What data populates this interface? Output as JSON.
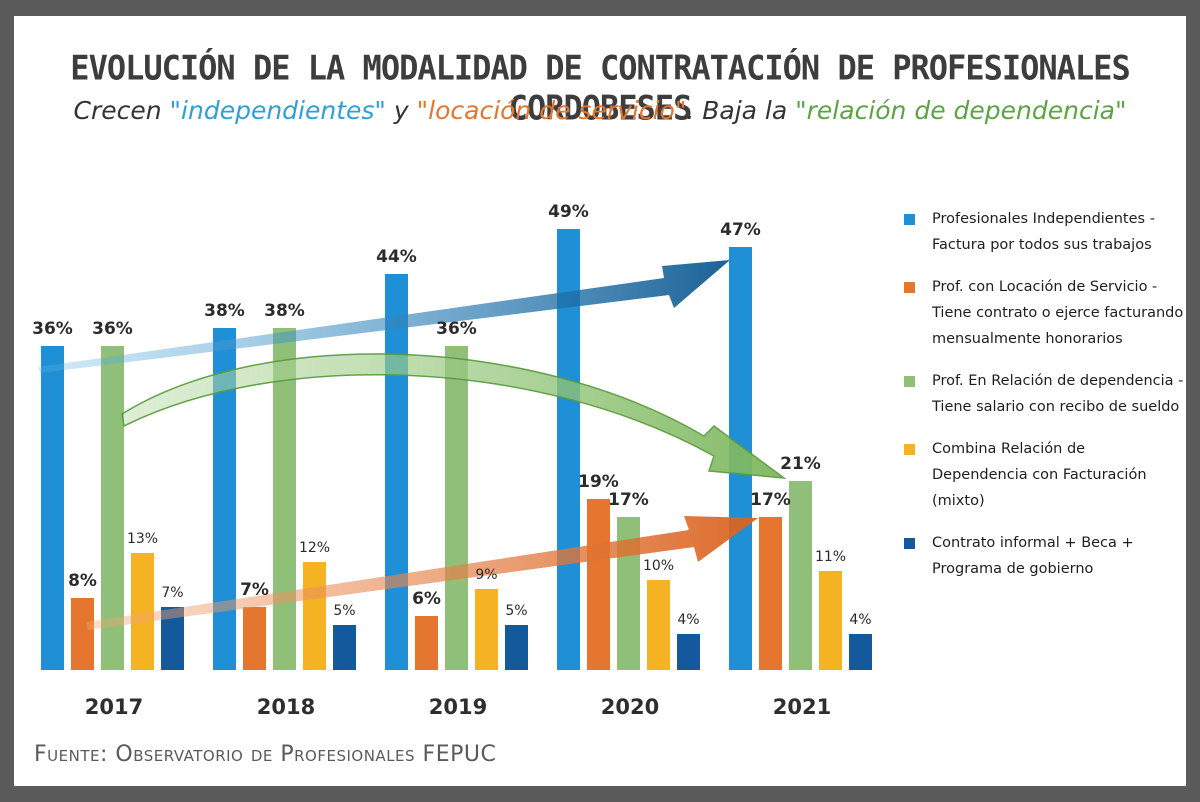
{
  "header": {
    "title": "EVOLUCIÓN DE LA MODALIDAD DE CONTRATACIÓN DE PROFESIONALES CORDOBESES",
    "subtitle_parts": [
      {
        "text": "Crecen ",
        "tone": "plain"
      },
      {
        "text": "\"independientes\"",
        "tone": "blue"
      },
      {
        "text": " y ",
        "tone": "plain"
      },
      {
        "text": "\"locación de servicio\"",
        "tone": "orange"
      },
      {
        "text": ". Baja la ",
        "tone": "plain"
      },
      {
        "text": "\"relación de dependencia\"",
        "tone": "green"
      }
    ]
  },
  "source": "Fuente: Observatorio de Profesionales FEPUC",
  "colors": {
    "independientes": "#1f8fd6",
    "locacion": "#e5762f",
    "dependencia": "#8fbf79",
    "mixto": "#f5b324",
    "informal": "#14599c"
  },
  "chart_data": {
    "type": "bar",
    "categories": [
      "2017",
      "2018",
      "2019",
      "2020",
      "2021"
    ],
    "ylim": [
      0,
      55
    ],
    "series": [
      {
        "key": "independientes",
        "name": "Profesionales Independientes - Factura por todos sus trabajos",
        "values": [
          36,
          38,
          44,
          49,
          47
        ],
        "labels": [
          "36%",
          "38%",
          "44%",
          "49%",
          "47%"
        ]
      },
      {
        "key": "locacion",
        "name": "Prof. con Locación de Servicio - Tiene contrato o ejerce facturando mensualmente honorarios",
        "values": [
          8,
          7,
          6,
          19,
          17
        ],
        "labels": [
          "8%",
          "7%",
          "6%",
          "19%",
          "17%"
        ]
      },
      {
        "key": "dependencia",
        "name": "Prof. En Relación de dependencia - Tiene salario con recibo de sueldo",
        "values": [
          36,
          38,
          36,
          17,
          21
        ],
        "labels": [
          "36%",
          "38%",
          "36%",
          "17%",
          "21%"
        ]
      },
      {
        "key": "mixto",
        "name": "Combina Relación de Dependencia con Facturación (mixto)",
        "values": [
          13,
          12,
          9,
          10,
          11
        ],
        "labels": [
          "13%",
          "12%",
          "9%",
          "10%",
          "11%"
        ]
      },
      {
        "key": "informal",
        "name": "Contrato informal + Beca + Programa de gobierno",
        "values": [
          7,
          5,
          5,
          4,
          4
        ],
        "labels": [
          "7%",
          "5%",
          "5%",
          "4%",
          "4%"
        ]
      }
    ],
    "legend": "right",
    "grid": false
  }
}
